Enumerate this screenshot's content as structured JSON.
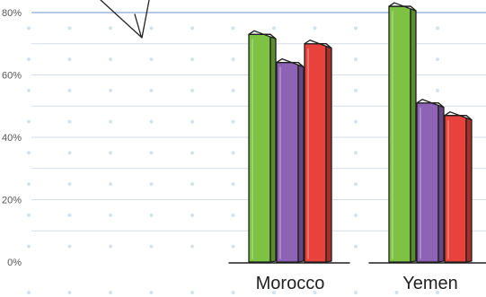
{
  "chart_data": {
    "type": "bar",
    "categories": [
      "Morocco",
      "Yemen"
    ],
    "series": [
      {
        "color": "#7dc242",
        "values": [
          73,
          82
        ]
      },
      {
        "color": "#8e63b5",
        "values": [
          64,
          51
        ]
      },
      {
        "color": "#e8423c",
        "values": [
          70,
          47
        ]
      }
    ],
    "y_ticks": [
      "0%",
      "20%",
      "40%",
      "60%",
      "80%"
    ],
    "ylim": [
      0,
      80
    ],
    "grid": true
  }
}
